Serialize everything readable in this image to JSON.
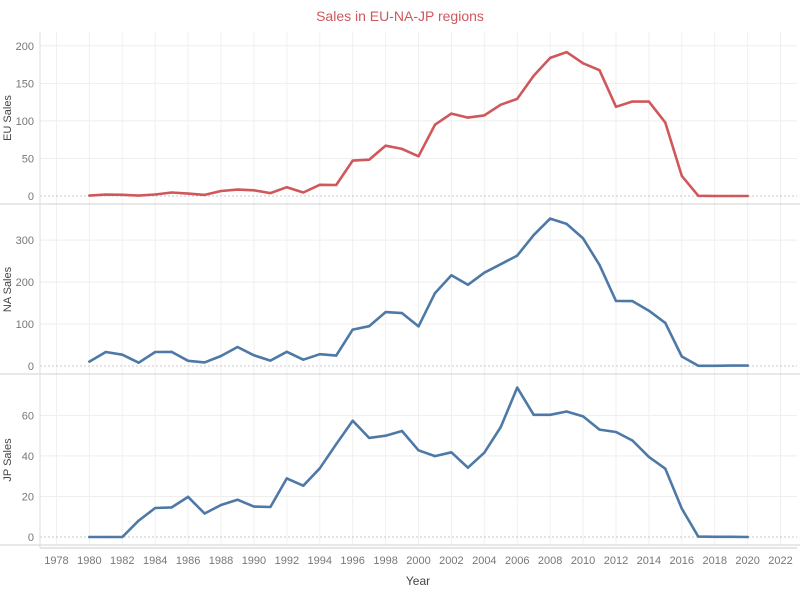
{
  "title": "Sales  in EU-NA-JP regions",
  "colors": {
    "eu": "#d0585b",
    "na": "#4e79a7",
    "jp": "#4e79a7",
    "title": "#d0585b"
  },
  "chart_data": {
    "type": "line",
    "title": "Sales  in EU-NA-JP regions",
    "xlabel": "Year",
    "x_ticks": [
      1978,
      1980,
      1982,
      1984,
      1986,
      1988,
      1990,
      1992,
      1994,
      1996,
      1998,
      2000,
      2002,
      2004,
      2006,
      2008,
      2010,
      2012,
      2014,
      2016,
      2018,
      2020,
      2022
    ],
    "xlim": [
      1977,
      2023
    ],
    "grid": true,
    "x": [
      1980,
      1981,
      1982,
      1983,
      1984,
      1985,
      1986,
      1987,
      1988,
      1989,
      1990,
      1991,
      1992,
      1993,
      1994,
      1995,
      1996,
      1997,
      1998,
      1999,
      2000,
      2001,
      2002,
      2003,
      2004,
      2005,
      2006,
      2007,
      2008,
      2009,
      2010,
      2011,
      2012,
      2013,
      2014,
      2015,
      2016,
      2017,
      2018,
      2019,
      2020
    ],
    "panels": [
      {
        "key": "eu",
        "ylabel": "EU Sales",
        "ylim": [
          0,
          205
        ],
        "y_ticks": [
          0,
          50,
          100,
          150,
          200
        ],
        "values": [
          0.5,
          1.8,
          1.6,
          0.5,
          2,
          4.7,
          3.2,
          1.5,
          6.6,
          8.5,
          7.6,
          3.9,
          11.7,
          4.7,
          14.9,
          14.7,
          47.1,
          48.3,
          66.9,
          62.7,
          52.8,
          94.9,
          109.7,
          104.3,
          107.3,
          121.6,
          129.2,
          160.1,
          183.8,
          191.6,
          176.6,
          167.4,
          118.8,
          125.8,
          125.6,
          97.7,
          26.8,
          0.2,
          0,
          0,
          0
        ]
      },
      {
        "key": "na",
        "ylabel": "NA Sales",
        "ylim": [
          0,
          360
        ],
        "y_ticks": [
          0,
          100,
          200,
          300
        ],
        "values": [
          10.6,
          33.4,
          26.9,
          7.8,
          33.3,
          33.7,
          12.5,
          8.5,
          23.9,
          45.2,
          25.5,
          12.8,
          33.9,
          15.1,
          28.2,
          24.8,
          86.8,
          94.8,
          128.4,
          126.1,
          94.5,
          173.9,
          216.2,
          193.6,
          222.5,
          242.6,
          263.1,
          312,
          351.4,
          338.9,
          304.2,
          241.1,
          154.9,
          154.8,
          131.9,
          102.8,
          22.7,
          0.5,
          0.5,
          1,
          1
        ]
      },
      {
        "key": "jp",
        "ylabel": "JP Sales",
        "ylim": [
          0,
          75
        ],
        "y_ticks": [
          0,
          20,
          40,
          60
        ],
        "values": [
          0,
          0,
          0,
          8.1,
          14.3,
          14.6,
          19.8,
          11.6,
          15.8,
          18.4,
          15,
          14.8,
          28.9,
          25.3,
          33.9,
          45.8,
          57.4,
          48.9,
          50,
          52.3,
          42.8,
          39.9,
          41.8,
          34.2,
          41.6,
          54.3,
          73.7,
          60.3,
          60.3,
          61.9,
          59.5,
          53,
          51.8,
          47.6,
          39.5,
          33.7,
          14,
          0.2,
          0.1,
          0.1,
          0
        ]
      }
    ]
  }
}
